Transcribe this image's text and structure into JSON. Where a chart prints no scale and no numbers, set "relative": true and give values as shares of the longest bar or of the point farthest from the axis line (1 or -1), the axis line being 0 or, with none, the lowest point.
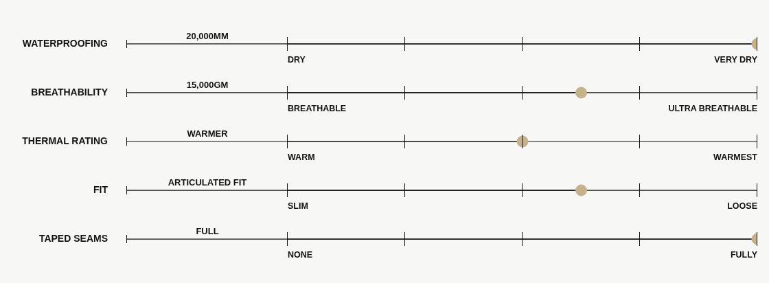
{
  "chart_data": {
    "type": "lollipop",
    "orientation": "horizontal",
    "relative": true,
    "categories": [
      "WATERPROOFING",
      "BREATHABILITY",
      "THERMAL RATING",
      "FIT",
      "TAPED SEAMS"
    ],
    "values": [
      1,
      0.625,
      0.5,
      0.625,
      1
    ],
    "color": "#c5b18a",
    "marker": "circle",
    "grid": "y",
    "annotations": [
      "20,000MM",
      "DRY",
      "VERY DRY",
      "15,000GM",
      "BREATHABLE",
      "ULTRA BREATHABLE",
      "WARMER",
      "WARM",
      "WARMEST",
      "ARTICULATED FIT",
      "SLIM",
      "LOOSE",
      "FULL",
      "NONE",
      "FULLY"
    ]
  }
}
